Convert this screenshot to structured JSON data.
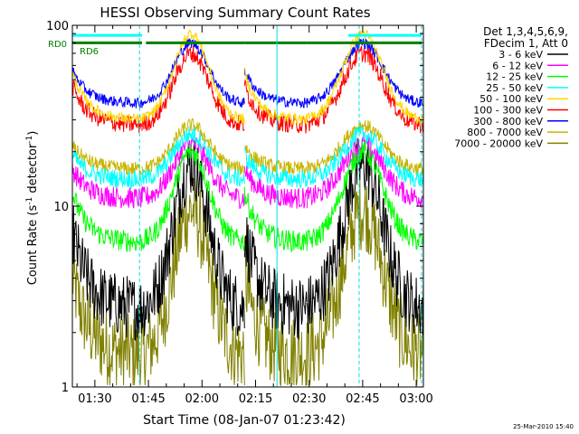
{
  "chart_data": {
    "type": "line",
    "title": "HESSI Observing Summary Count Rates",
    "xlabel": "Start Time (08-Jan-07 01:23:42)",
    "ylabel_main": "Count Rate (s",
    "ylabel_sup1": "-1",
    "ylabel_mid": " detector",
    "ylabel_sup2": "-1",
    "ylabel_end": ")",
    "footer_date": "25-Mar-2010 15:40",
    "y_scale": "log",
    "ylim": [
      1,
      100
    ],
    "xlim_minutes": [
      83.7,
      182
    ],
    "x_ticks": [
      {
        "m": 90,
        "label": "01:30"
      },
      {
        "m": 105,
        "label": "01:45"
      },
      {
        "m": 120,
        "label": "02:00"
      },
      {
        "m": 135,
        "label": "02:15"
      },
      {
        "m": 150,
        "label": "02:30"
      },
      {
        "m": 165,
        "label": "02:45"
      },
      {
        "m": 180,
        "label": "03:00"
      }
    ],
    "y_tick_labels": [
      {
        "v": 1,
        "label": "1"
      },
      {
        "v": 10,
        "label": "10"
      },
      {
        "v": 100,
        "label": "100"
      }
    ],
    "legend_header": [
      "Det 1,3,4,5,6,9,",
      "FDecim 1, Att 0"
    ],
    "annotations": [
      {
        "text": "RD0",
        "color": "#008000"
      },
      {
        "text": "RD6",
        "color": "#008000"
      }
    ],
    "attenuator_lines": [
      {
        "m": 83.7,
        "color": "#00e0e0",
        "style": "solid"
      },
      {
        "m": 102.5,
        "color": "#00e0e0",
        "style": "dashed"
      },
      {
        "m": 141.0,
        "color": "#00e0e0",
        "style": "solid"
      },
      {
        "m": 164.0,
        "color": "#00e0e0",
        "style": "dashed"
      },
      {
        "m": 181.5,
        "color": "#00e0e0",
        "style": "dashed"
      }
    ],
    "orbit_segments": [
      {
        "start": 83.7,
        "end": 103.2,
        "shape": "decline"
      },
      {
        "start": 103.2,
        "end": 131.9,
        "shape": "arch"
      },
      {
        "start": 131.9,
        "end": 149.4,
        "shape": "decline"
      },
      {
        "start": 149.4,
        "end": 182,
        "shape": "arch"
      }
    ],
    "status_bars": [
      {
        "color": "#00ffff",
        "level": 88,
        "segments": [
          [
            83.7,
            103.2
          ],
          [
            161.0,
            181.5
          ]
        ]
      },
      {
        "color": "#008000",
        "level": 80,
        "segments": [
          [
            83.7,
            103.2
          ],
          [
            104.3,
            131.9
          ],
          [
            131.9,
            149.4
          ],
          [
            149.4,
            181.5
          ]
        ]
      }
    ],
    "series": [
      {
        "name": "3 - 6 keV",
        "color": "#000000",
        "base": 2.7,
        "peak": 17,
        "noise": 0.18
      },
      {
        "name": "6 - 12 keV",
        "color": "#ff00ff",
        "base": 11,
        "peak": 22,
        "noise": 0.06
      },
      {
        "name": "12 - 25 keV",
        "color": "#00ff00",
        "base": 6.3,
        "peak": 20,
        "noise": 0.06
      },
      {
        "name": "25 - 50 keV",
        "color": "#00ffff",
        "base": 14,
        "peak": 25,
        "noise": 0.05
      },
      {
        "name": "50 - 100 keV",
        "color": "#ffd700",
        "base": 30,
        "peak": 90,
        "noise": 0.03
      },
      {
        "name": "100 - 300 keV",
        "color": "#ff0000",
        "base": 28,
        "peak": 70,
        "noise": 0.05
      },
      {
        "name": "300 - 800 keV",
        "color": "#0000ff",
        "base": 37,
        "peak": 80,
        "noise": 0.03
      },
      {
        "name": "800 - 7000 keV",
        "color": "#c8b400",
        "base": 16,
        "peak": 28,
        "noise": 0.04
      },
      {
        "name": "7000 - 20000 keV",
        "color": "#808000",
        "base": 1.5,
        "peak": 9.5,
        "noise": 0.22
      }
    ]
  }
}
